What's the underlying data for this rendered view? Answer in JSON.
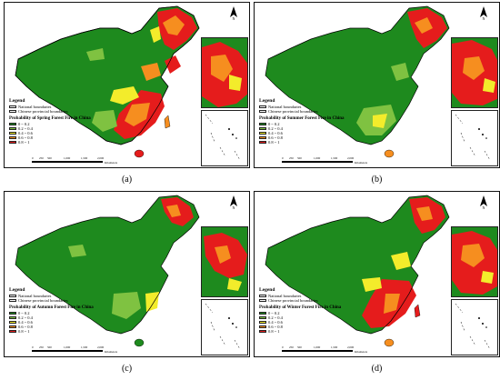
{
  "legend_title": "Legend",
  "boundary_labels": [
    "National boundaries",
    "Chinese provincial boundaries"
  ],
  "classes": [
    {
      "label": "0 ~ 0.2",
      "color": "#1e8a1e"
    },
    {
      "label": "0.2 ~ 0.4",
      "color": "#7fc241"
    },
    {
      "label": "0.4 ~ 0.6",
      "color": "#f3ec2b"
    },
    {
      "label": "0.6 ~ 0.8",
      "color": "#f68e1f"
    },
    {
      "label": "0.8 ~ 1",
      "color": "#e51c1c"
    }
  ],
  "scale_labels": [
    "0",
    "250",
    "500",
    "1,000",
    "1,500",
    "2,000",
    "Kilometers"
  ],
  "north_label": "N",
  "panels": [
    {
      "caption": "(a)",
      "map_title": "Probability of Spring Forest Fire in China"
    },
    {
      "caption": "(b)",
      "map_title": "Probability of Summer Forest Fire in China"
    },
    {
      "caption": "(c)",
      "map_title": "Probability of Autumn Forest Fire in China"
    },
    {
      "caption": "(d)",
      "map_title": "Probability of Winter Forest Fire in China"
    }
  ]
}
